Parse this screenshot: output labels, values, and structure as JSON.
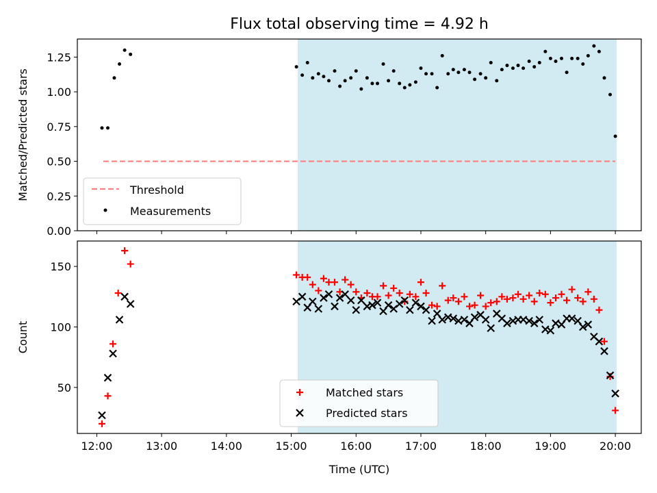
{
  "title": "Flux total observing time = 4.92 h",
  "colors": {
    "span": "#add8e6",
    "threshold": "#ff7f7f",
    "measurement": "#000000",
    "matched": "#ff0000",
    "predicted": "#000000"
  },
  "chart_data": [
    {
      "type": "scatter",
      "ylabel": "Matched/Predicted stars",
      "ylim": [
        0,
        1.38
      ],
      "yticks": [
        "0.00",
        "0.25",
        "0.50",
        "0.75",
        "1.00",
        "1.25"
      ],
      "xlim": [
        11.7,
        20.4
      ],
      "xticks": [
        "12:00",
        "13:00",
        "14:00",
        "15:00",
        "16:00",
        "17:00",
        "18:00",
        "19:00",
        "20:00"
      ],
      "highlight_span": [
        15.1,
        20.02
      ],
      "legend_position": "lower-left",
      "threshold": {
        "name": "Threshold",
        "value": 0.5,
        "x_range": [
          12.1,
          20.0
        ]
      },
      "series": [
        {
          "name": "Measurements",
          "points": [
            [
              12.08,
              0.74
            ],
            [
              12.17,
              0.74
            ],
            [
              12.27,
              1.1
            ],
            [
              12.35,
              1.2
            ],
            [
              12.43,
              1.3
            ],
            [
              12.52,
              1.27
            ],
            [
              15.08,
              1.18
            ],
            [
              15.17,
              1.12
            ],
            [
              15.25,
              1.21
            ],
            [
              15.33,
              1.1
            ],
            [
              15.42,
              1.13
            ],
            [
              15.5,
              1.11
            ],
            [
              15.58,
              1.08
            ],
            [
              15.67,
              1.15
            ],
            [
              15.75,
              1.04
            ],
            [
              15.83,
              1.08
            ],
            [
              15.92,
              1.1
            ],
            [
              16.0,
              1.15
            ],
            [
              16.08,
              1.02
            ],
            [
              16.17,
              1.1
            ],
            [
              16.25,
              1.06
            ],
            [
              16.33,
              1.06
            ],
            [
              16.42,
              1.2
            ],
            [
              16.5,
              1.08
            ],
            [
              16.58,
              1.15
            ],
            [
              16.67,
              1.06
            ],
            [
              16.75,
              1.03
            ],
            [
              16.83,
              1.05
            ],
            [
              16.92,
              1.07
            ],
            [
              17.0,
              1.17
            ],
            [
              17.08,
              1.13
            ],
            [
              17.17,
              1.13
            ],
            [
              17.25,
              1.03
            ],
            [
              17.33,
              1.26
            ],
            [
              17.42,
              1.13
            ],
            [
              17.5,
              1.16
            ],
            [
              17.58,
              1.14
            ],
            [
              17.67,
              1.16
            ],
            [
              17.75,
              1.14
            ],
            [
              17.83,
              1.09
            ],
            [
              17.92,
              1.13
            ],
            [
              18.0,
              1.1
            ],
            [
              18.08,
              1.21
            ],
            [
              18.17,
              1.08
            ],
            [
              18.25,
              1.16
            ],
            [
              18.33,
              1.19
            ],
            [
              18.42,
              1.17
            ],
            [
              18.5,
              1.19
            ],
            [
              18.58,
              1.17
            ],
            [
              18.67,
              1.22
            ],
            [
              18.75,
              1.18
            ],
            [
              18.83,
              1.21
            ],
            [
              18.92,
              1.29
            ],
            [
              19.0,
              1.24
            ],
            [
              19.08,
              1.22
            ],
            [
              19.17,
              1.24
            ],
            [
              19.25,
              1.14
            ],
            [
              19.33,
              1.24
            ],
            [
              19.42,
              1.24
            ],
            [
              19.5,
              1.2
            ],
            [
              19.58,
              1.26
            ],
            [
              19.67,
              1.33
            ],
            [
              19.75,
              1.29
            ],
            [
              19.83,
              1.1
            ],
            [
              19.92,
              0.98
            ],
            [
              20.0,
              0.68
            ]
          ]
        }
      ]
    },
    {
      "type": "scatter",
      "ylabel": "Count",
      "xlabel": "Time (UTC)",
      "ylim": [
        12,
        171
      ],
      "yticks": [
        "50",
        "100",
        "150"
      ],
      "xlim": [
        11.7,
        20.4
      ],
      "xticks": [
        "12:00",
        "13:00",
        "14:00",
        "15:00",
        "16:00",
        "17:00",
        "18:00",
        "19:00",
        "20:00"
      ],
      "highlight_span": [
        15.1,
        20.02
      ],
      "legend_position": "lower-center",
      "series": [
        {
          "name": "Matched stars",
          "marker": "plus",
          "points": [
            [
              12.08,
              20
            ],
            [
              12.17,
              43
            ],
            [
              12.25,
              86
            ],
            [
              12.33,
              128
            ],
            [
              12.43,
              163
            ],
            [
              12.52,
              152
            ],
            [
              15.08,
              143
            ],
            [
              15.17,
              141
            ],
            [
              15.25,
              141
            ],
            [
              15.33,
              135
            ],
            [
              15.42,
              130
            ],
            [
              15.5,
              140
            ],
            [
              15.58,
              137
            ],
            [
              15.67,
              137
            ],
            [
              15.75,
              129
            ],
            [
              15.83,
              139
            ],
            [
              15.92,
              135
            ],
            [
              16.0,
              129
            ],
            [
              16.08,
              124
            ],
            [
              16.17,
              128
            ],
            [
              16.25,
              125
            ],
            [
              16.33,
              125
            ],
            [
              16.42,
              134
            ],
            [
              16.5,
              126
            ],
            [
              16.58,
              132
            ],
            [
              16.67,
              128
            ],
            [
              16.75,
              121
            ],
            [
              16.83,
              127
            ],
            [
              16.92,
              125
            ],
            [
              17.0,
              137
            ],
            [
              17.08,
              128
            ],
            [
              17.17,
              118
            ],
            [
              17.25,
              117
            ],
            [
              17.33,
              134
            ],
            [
              17.42,
              122
            ],
            [
              17.5,
              124
            ],
            [
              17.58,
              121
            ],
            [
              17.67,
              125
            ],
            [
              17.75,
              117
            ],
            [
              17.83,
              118
            ],
            [
              17.92,
              126
            ],
            [
              18.0,
              117
            ],
            [
              18.08,
              120
            ],
            [
              18.17,
              121
            ],
            [
              18.25,
              125
            ],
            [
              18.33,
              123
            ],
            [
              18.42,
              124
            ],
            [
              18.5,
              127
            ],
            [
              18.58,
              123
            ],
            [
              18.67,
              126
            ],
            [
              18.75,
              121
            ],
            [
              18.83,
              128
            ],
            [
              18.92,
              127
            ],
            [
              19.0,
              120
            ],
            [
              19.08,
              124
            ],
            [
              19.17,
              127
            ],
            [
              19.25,
              122
            ],
            [
              19.33,
              131
            ],
            [
              19.42,
              124
            ],
            [
              19.5,
              121
            ],
            [
              19.58,
              129
            ],
            [
              19.67,
              123
            ],
            [
              19.75,
              114
            ],
            [
              19.83,
              88
            ],
            [
              19.92,
              59
            ],
            [
              20.0,
              31
            ]
          ]
        },
        {
          "name": "Predicted stars",
          "marker": "x",
          "points": [
            [
              12.08,
              27
            ],
            [
              12.17,
              58
            ],
            [
              12.25,
              78
            ],
            [
              12.35,
              106
            ],
            [
              12.43,
              125
            ],
            [
              12.52,
              119
            ],
            [
              15.08,
              121
            ],
            [
              15.17,
              125
            ],
            [
              15.25,
              116
            ],
            [
              15.33,
              121
            ],
            [
              15.42,
              115
            ],
            [
              15.5,
              124
            ],
            [
              15.58,
              127
            ],
            [
              15.67,
              117
            ],
            [
              15.75,
              124
            ],
            [
              15.83,
              127
            ],
            [
              15.92,
              122
            ],
            [
              16.0,
              114
            ],
            [
              16.08,
              122
            ],
            [
              16.17,
              117
            ],
            [
              16.25,
              118
            ],
            [
              16.33,
              120
            ],
            [
              16.42,
              113
            ],
            [
              16.5,
              118
            ],
            [
              16.58,
              115
            ],
            [
              16.67,
              119
            ],
            [
              16.75,
              122
            ],
            [
              16.83,
              114
            ],
            [
              16.92,
              120
            ],
            [
              17.0,
              117
            ],
            [
              17.08,
              114
            ],
            [
              17.17,
              105
            ],
            [
              17.25,
              111
            ],
            [
              17.33,
              106
            ],
            [
              17.42,
              108
            ],
            [
              17.5,
              107
            ],
            [
              17.58,
              105
            ],
            [
              17.67,
              106
            ],
            [
              17.75,
              103
            ],
            [
              17.83,
              108
            ],
            [
              17.92,
              110
            ],
            [
              18.0,
              106
            ],
            [
              18.08,
              99
            ],
            [
              18.17,
              111
            ],
            [
              18.25,
              107
            ],
            [
              18.33,
              103
            ],
            [
              18.42,
              105
            ],
            [
              18.5,
              106
            ],
            [
              18.58,
              106
            ],
            [
              18.67,
              105
            ],
            [
              18.75,
              103
            ],
            [
              18.83,
              106
            ],
            [
              18.92,
              98
            ],
            [
              19.0,
              97
            ],
            [
              19.08,
              103
            ],
            [
              19.17,
              102
            ],
            [
              19.25,
              107
            ],
            [
              19.33,
              107
            ],
            [
              19.42,
              105
            ],
            [
              19.5,
              100
            ],
            [
              19.58,
              102
            ],
            [
              19.67,
              92
            ],
            [
              19.75,
              88
            ],
            [
              19.83,
              80
            ],
            [
              19.92,
              60
            ],
            [
              20.0,
              45
            ]
          ]
        }
      ]
    }
  ]
}
